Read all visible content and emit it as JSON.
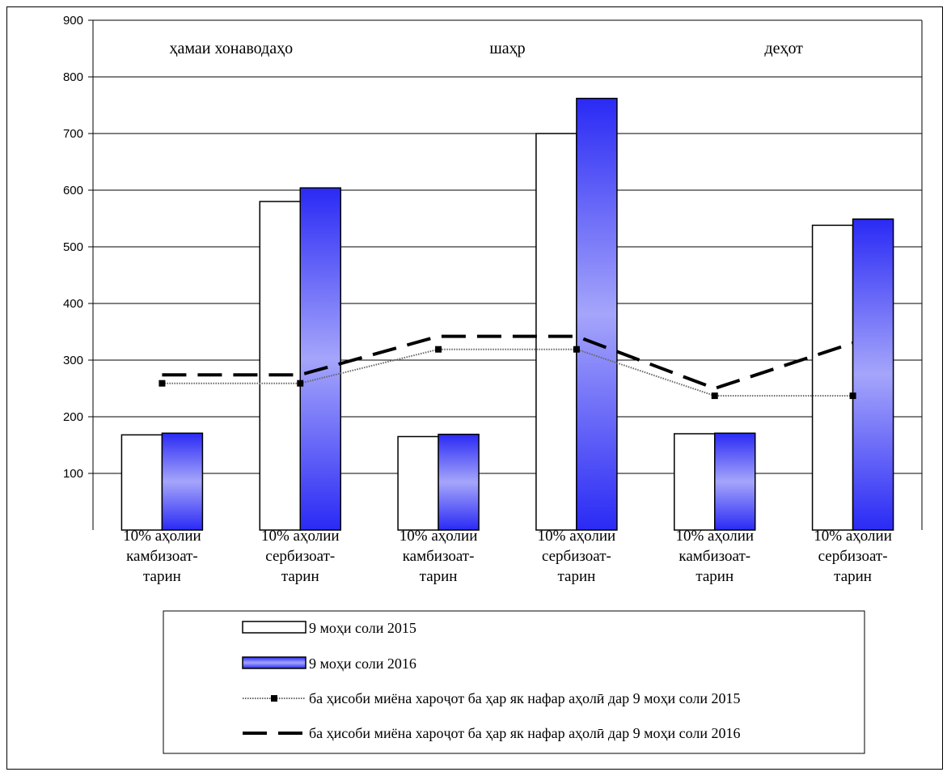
{
  "chart_data": {
    "type": "bar",
    "ylim": [
      0,
      900
    ],
    "yticks": [
      100,
      200,
      300,
      400,
      500,
      600,
      700,
      800,
      900
    ],
    "grid": true,
    "groups": [
      "ҳамаи хонаводаҳо",
      "шаҳр",
      "деҳот"
    ],
    "categories": [
      [
        "10% аҳолии",
        "камбизоат-",
        "тарин"
      ],
      [
        "10% аҳолии",
        "сербизоат-",
        "тарин"
      ],
      [
        "10% аҳолии",
        "камбизоат-",
        "тарин"
      ],
      [
        "10% аҳолии",
        "сербизоат-",
        "тарин"
      ],
      [
        "10% аҳолии",
        "камбизоат-",
        "тарин"
      ],
      [
        "10% аҳолии",
        "сербизоат-",
        "тарин"
      ]
    ],
    "series": [
      {
        "name": "9 моҳи соли 2015",
        "kind": "bar",
        "color": "#ffffff",
        "values": [
          168,
          580,
          165,
          700,
          170,
          538
        ]
      },
      {
        "name": "9 моҳи соли 2016",
        "kind": "bar",
        "color": "#2a2af5",
        "values": [
          171,
          604,
          169,
          762,
          171,
          549
        ]
      },
      {
        "name": "ба ҳисоби миёна хароҷот ба ҳар як нафар аҳолӣ дар 9 моҳи  соли 2015",
        "kind": "line",
        "style": "dotted-square",
        "color": "#000000",
        "values": [
          259,
          259,
          319,
          319,
          237,
          237
        ]
      },
      {
        "name": "ба ҳисоби миёна хароҷот ба ҳар як нафар аҳолӣ дар 9 моҳи  соли 2016",
        "kind": "line",
        "style": "dashed",
        "color": "#000000",
        "values": [
          274,
          274,
          342,
          342,
          250,
          330
        ]
      }
    ],
    "legend": {
      "position": "bottom",
      "entries": [
        "9 моҳи соли 2015",
        "9 моҳи соли 2016",
        "ба ҳисоби миёна хароҷот ба ҳар як нафар аҳолӣ дар 9 моҳи  соли 2015",
        "ба ҳисоби миёна хароҷот ба ҳар як нафар аҳолӣ дар 9 моҳи  соли 2016"
      ]
    }
  }
}
